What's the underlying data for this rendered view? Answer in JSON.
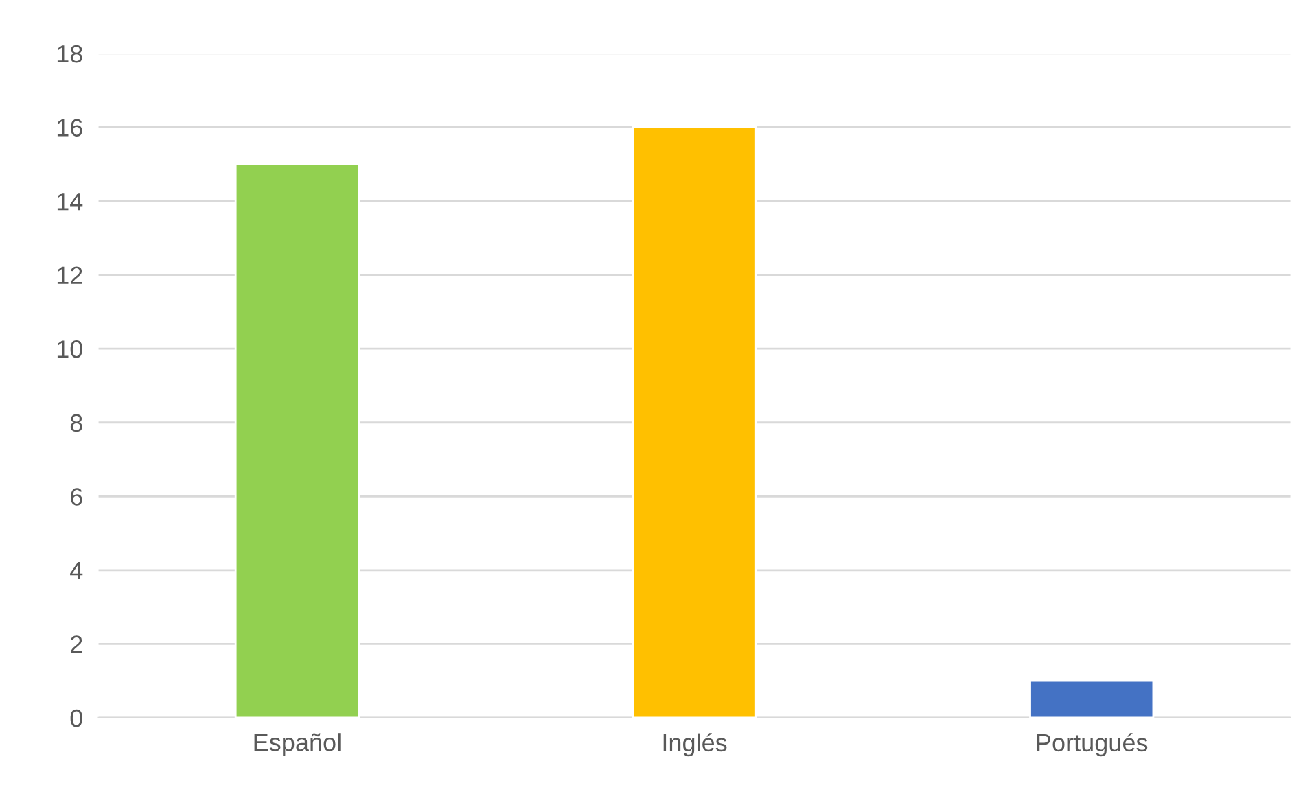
{
  "chart_data": {
    "type": "bar",
    "categories": [
      "Español",
      "Inglés",
      "Portugués"
    ],
    "values": [
      15,
      16,
      1
    ],
    "colors": [
      "#92d050",
      "#ffc000",
      "#4472c4"
    ],
    "ylim": [
      0,
      18
    ],
    "yticks": [
      0,
      2,
      4,
      6,
      8,
      10,
      12,
      14,
      16,
      18
    ],
    "grid": "y",
    "legend": false
  }
}
